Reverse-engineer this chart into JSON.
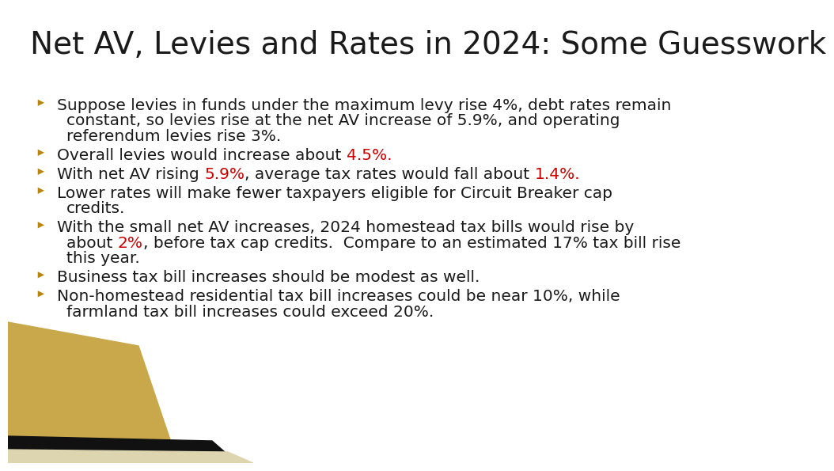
{
  "title": "Net AV, Levies and Rates in 2024: Some Guesswork",
  "title_fontsize": 28,
  "title_color": "#1a1a1a",
  "background_color": "#ffffff",
  "bullet_arrow_color": "#b8860b",
  "text_color": "#1a1a1a",
  "red_color": "#cc0000",
  "body_fontsize": 14.5,
  "bullets": [
    {
      "lines": [
        [
          {
            "text": "Suppose levies in funds under the maximum levy rise 4%, debt rates remain",
            "color": "#1a1a1a"
          }
        ],
        [
          {
            "text": "constant, so levies rise at the net AV increase of 5.9%, and operating",
            "color": "#1a1a1a"
          }
        ],
        [
          {
            "text": "referendum levies rise 3%.",
            "color": "#1a1a1a"
          }
        ]
      ]
    },
    {
      "lines": [
        [
          {
            "text": "Overall levies would increase about ",
            "color": "#1a1a1a"
          },
          {
            "text": "4.5%.",
            "color": "#cc0000"
          }
        ]
      ]
    },
    {
      "lines": [
        [
          {
            "text": "With net AV rising ",
            "color": "#1a1a1a"
          },
          {
            "text": "5.9%",
            "color": "#cc0000"
          },
          {
            "text": ", average tax rates would fall about ",
            "color": "#1a1a1a"
          },
          {
            "text": "1.4%.",
            "color": "#cc0000"
          }
        ]
      ]
    },
    {
      "lines": [
        [
          {
            "text": "Lower rates will make fewer taxpayers eligible for Circuit Breaker cap",
            "color": "#1a1a1a"
          }
        ],
        [
          {
            "text": "credits.",
            "color": "#1a1a1a"
          }
        ]
      ]
    },
    {
      "lines": [
        [
          {
            "text": "With the small net AV increases, 2024 homestead tax bills would rise by",
            "color": "#1a1a1a"
          }
        ],
        [
          {
            "text": "about ",
            "color": "#1a1a1a"
          },
          {
            "text": "2%",
            "color": "#cc0000"
          },
          {
            "text": ", before tax cap credits.  Compare to an estimated 17% tax bill rise",
            "color": "#1a1a1a"
          }
        ],
        [
          {
            "text": "this year.",
            "color": "#1a1a1a"
          }
        ]
      ]
    },
    {
      "lines": [
        [
          {
            "text": "Business tax bill increases should be modest as well.",
            "color": "#1a1a1a"
          }
        ]
      ]
    },
    {
      "lines": [
        [
          {
            "text": "Non-homestead residential tax bill increases could be near 10%, while",
            "color": "#1a1a1a"
          }
        ],
        [
          {
            "text": "farmland tax bill increases could exceed 20%.",
            "color": "#1a1a1a"
          }
        ]
      ]
    }
  ],
  "decoration": {
    "gold_color": "#c9a84c",
    "black_color": "#111111",
    "cream_color": "#ddd5b0"
  }
}
